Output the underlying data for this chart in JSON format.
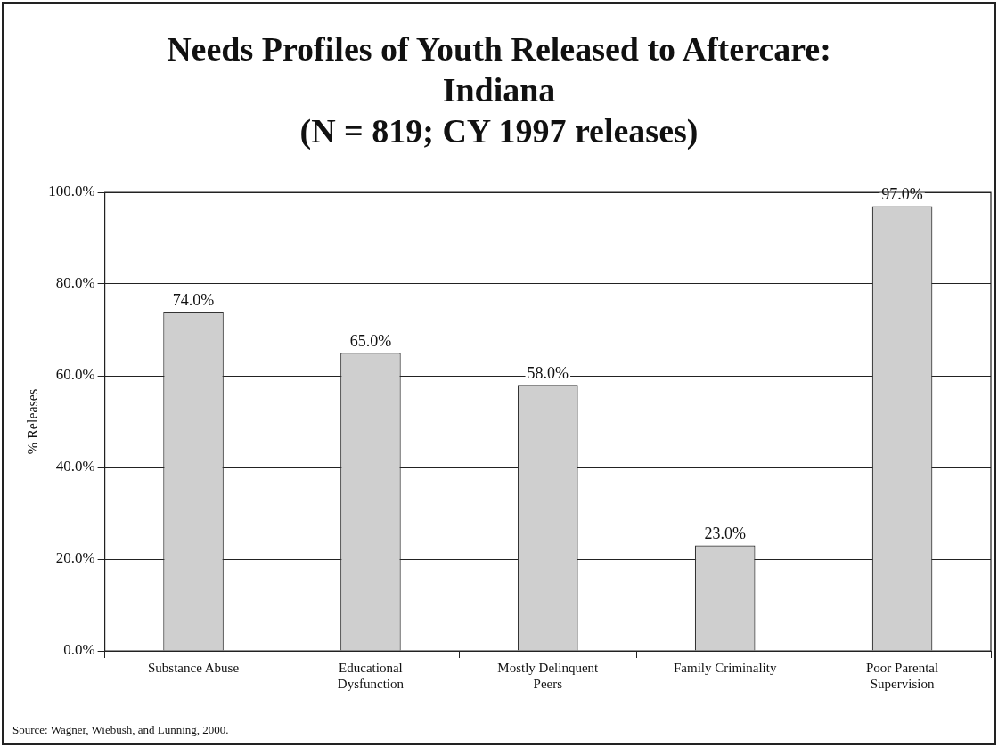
{
  "chart_data": {
    "type": "bar",
    "title": "Needs Profiles of Youth Released to Aftercare: Indiana",
    "subtitle": "(N = 819; CY 1997 releases)",
    "ylabel": "% Releases",
    "categories": [
      "Substance Abuse",
      "Educational Dysfunction",
      "Mostly Delinquent Peers",
      "Family Criminality",
      "Poor Parental Supervision"
    ],
    "values": [
      74,
      65,
      58,
      23,
      97
    ],
    "value_labels": [
      "74.0%",
      "65.0%",
      "58.0%",
      "23.0%",
      "97.0%"
    ],
    "color": "#cfcfcf",
    "ylim": [
      0,
      100
    ],
    "yticks": [
      {
        "value": 0,
        "label": "0.0%"
      },
      {
        "value": 20,
        "label": "20.0%"
      },
      {
        "value": 40,
        "label": "40.0%"
      },
      {
        "value": 60,
        "label": "60.0%"
      },
      {
        "value": 80,
        "label": "80.0%"
      },
      {
        "value": 100,
        "label": "100.0%"
      }
    ],
    "grid": "y",
    "annotations": [
      "Source:  Wagner, Wiebush, and Lunning, 2000."
    ]
  }
}
